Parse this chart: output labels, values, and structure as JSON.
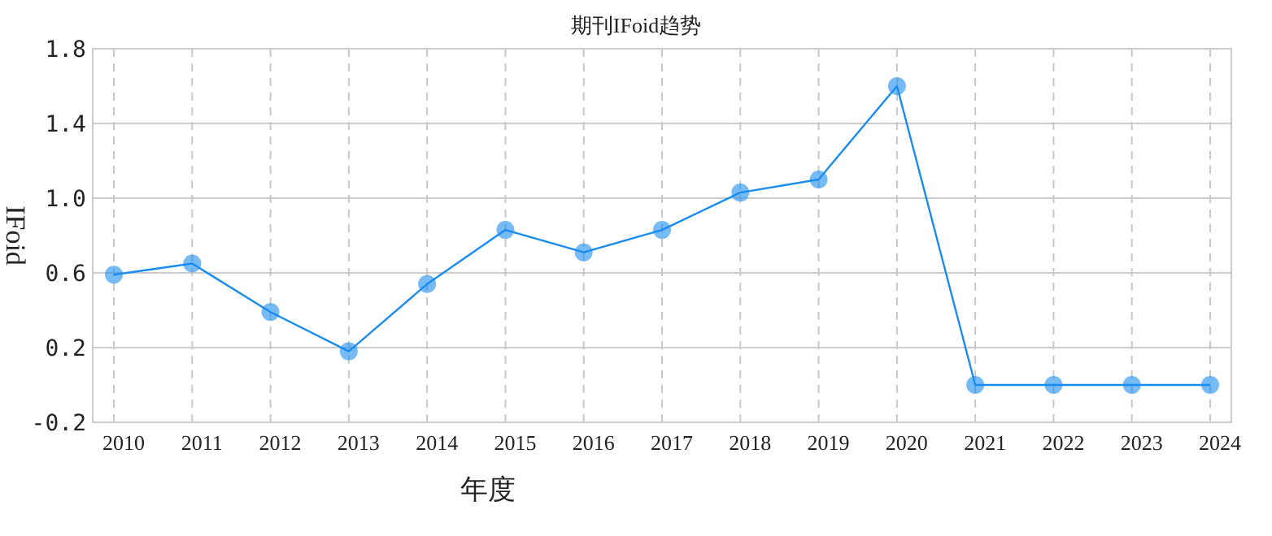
{
  "chart_data": {
    "type": "line",
    "title": "期刊IFoid趋势",
    "xlabel": "年度",
    "ylabel": "IFoid",
    "categories": [
      "2010",
      "2011",
      "2012",
      "2013",
      "2014",
      "2015",
      "2016",
      "2017",
      "2018",
      "2019",
      "2020",
      "2021",
      "2022",
      "2023",
      "2024"
    ],
    "series": [
      {
        "color": "#1a8cf0",
        "values": [
          0.59,
          0.65,
          0.39,
          0.18,
          0.54,
          0.83,
          0.71,
          0.83,
          1.03,
          1.1,
          1.6,
          0.0,
          0.0,
          0.0,
          0.0
        ]
      }
    ],
    "ylim": [
      -0.2,
      1.8
    ],
    "yticks": [
      {
        "value": -0.2,
        "label": "-0.2"
      },
      0.2,
      0.6,
      {
        "value": 1.0,
        "label": "1.0"
      },
      1.4,
      1.8
    ],
    "grid": true,
    "marker": "circle",
    "line_style": "solid"
  }
}
